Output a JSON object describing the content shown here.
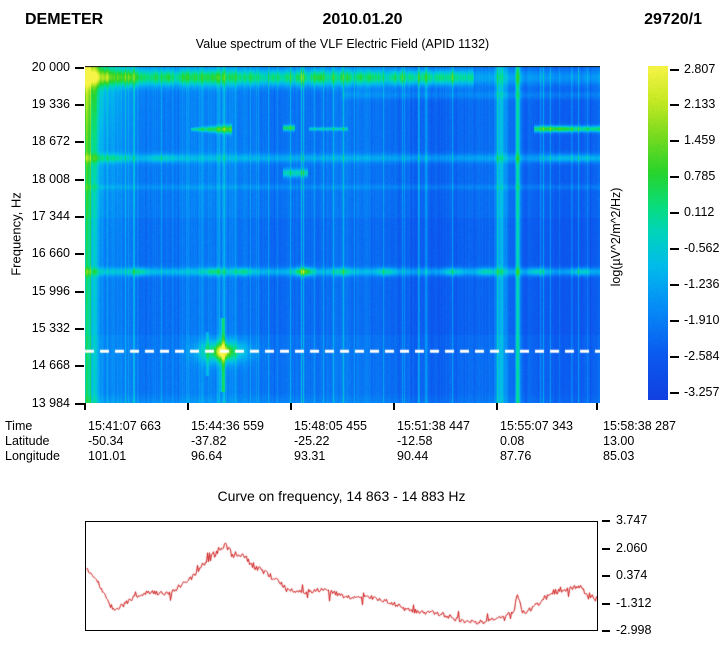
{
  "header": {
    "mission": "DEMETER",
    "date": "2010.01.20",
    "orbit": "29720/1"
  },
  "spectrogram": {
    "title": "Value spectrum of the VLF Electric Field (APID 1132)",
    "y_axis": {
      "label": "Frequency, Hz",
      "ticks": [
        "20 000",
        "19 336",
        "18 672",
        "18 008",
        "17 344",
        "16 660",
        "15 996",
        "15 332",
        "14 668",
        "13 984"
      ]
    },
    "colorbar": {
      "label": "log(µV^2/m^2/Hz)",
      "ticks": [
        "2.807",
        "2.133",
        "1.459",
        "0.785",
        "0.112",
        "-0.562",
        "-1.236",
        "-1.910",
        "-2.584",
        "-3.257"
      ]
    },
    "dashed_line": {
      "color": "#ffffff",
      "freq_fraction": 0.849
    }
  },
  "ephemeris": {
    "row_labels": [
      "Time",
      "Latitude",
      "Longitude"
    ],
    "field_keys": [
      "time",
      "lat",
      "lon"
    ],
    "columns": [
      {
        "time": "15:41:07 663",
        "lat": "-50.34",
        "lon": "101.01"
      },
      {
        "time": "15:44:36 559",
        "lat": "-37.82",
        "lon": "96.64"
      },
      {
        "time": "15:48:05 455",
        "lat": "-25.22",
        "lon": "93.31"
      },
      {
        "time": "15:51:38 447",
        "lat": "-12.58",
        "lon": "90.44"
      },
      {
        "time": "15:55:07 343",
        "lat": "0.08",
        "lon": "87.76"
      },
      {
        "time": "15:58:38 287",
        "lat": "13.00",
        "lon": "85.03"
      }
    ]
  },
  "curve": {
    "title": "Curve on frequency, 14 863 - 14 883 Hz",
    "y_ticks": [
      "3.747",
      "2.060",
      "0.374",
      "-1.312",
      "-2.998"
    ],
    "color": "#cc1111"
  },
  "palette": [
    [
      0,
      "#1240e2"
    ],
    [
      0.14,
      "#0b5cf0"
    ],
    [
      0.28,
      "#068ef8"
    ],
    [
      0.4,
      "#02bcec"
    ],
    [
      0.5,
      "#00d4bc"
    ],
    [
      0.58,
      "#0ade7e"
    ],
    [
      0.68,
      "#27d42c"
    ],
    [
      0.8,
      "#7fdc1f"
    ],
    [
      0.9,
      "#c8ea24"
    ],
    [
      1,
      "#f6f446"
    ]
  ],
  "chart_data": [
    {
      "type": "heatmap",
      "title": "Value spectrum of the VLF Electric Field (APID 1132)",
      "ylabel": "Frequency, Hz",
      "ylim": [
        13984,
        20000
      ],
      "y_ticks": [
        20000,
        19336,
        18672,
        18008,
        17344,
        16660,
        15996,
        15332,
        14668,
        13984
      ],
      "x_ticks_time": [
        "15:41:07 663",
        "15:44:36 559",
        "15:48:05 455",
        "15:51:38 447",
        "15:55:07 343",
        "15:58:38 287"
      ],
      "x_ticks_latitude": [
        -50.34,
        -37.82,
        -25.22,
        -12.58,
        0.08,
        13.0
      ],
      "x_ticks_longitude": [
        101.01,
        96.64,
        93.31,
        90.44,
        87.76,
        85.03
      ],
      "colorbar_label": "log(µV^2/m^2/Hz)",
      "colorbar_ticks": [
        2.807,
        2.133,
        1.459,
        0.785,
        0.112,
        -0.562,
        -1.236,
        -1.91,
        -2.584,
        -3.257
      ],
      "value_range": [
        -3.257,
        2.807
      ],
      "dashed_line_hz": 14873,
      "annotations": [
        "bright green emission band along the top near 20 000 Hz, fading past 15:54",
        "narrow green emission segments near 18 870 Hz",
        "faint cyan band near 18 360 Hz",
        "broad cyan band near 16 320 Hz with brighter patches",
        "green/yellow burst around 14 870 Hz near 15:44-15:45",
        "two bright vertical stripes near 15:55",
        "white dashed marker line at ~14 873 Hz"
      ],
      "background": {
        "base": 0.205,
        "left_boost": 0.12,
        "left_decay": 0.12,
        "right_darken": 0.02,
        "row_darken": 0.025
      },
      "features": [
        {
          "type": "topband",
          "center_fy": 0.033,
          "sigma": 0.024,
          "amp": 0.34,
          "x_fade": 0.755,
          "amp_right": 0.15
        },
        {
          "type": "topleft",
          "amp": 0.45,
          "dx": 0.05,
          "dy": 0.22
        },
        {
          "type": "hband",
          "fy": 0.187,
          "sigma": 0.0085,
          "amp": 0.5,
          "x0": 0.205,
          "x1": 0.285,
          "wedge": true
        },
        {
          "type": "hband",
          "fy": 0.183,
          "sigma": 0.008,
          "amp": 0.42,
          "x0": 0.385,
          "x1": 0.408
        },
        {
          "type": "hband",
          "fy": 0.186,
          "sigma": 0.005,
          "amp": 0.28,
          "x0": 0.435,
          "x1": 0.51
        },
        {
          "type": "hband",
          "fy": 0.186,
          "sigma": 0.009,
          "amp": 0.42,
          "x0": 0.873,
          "x1": 1,
          "blobs": [
            0.9,
            0.93
          ],
          "blob_amp": 0.12,
          "blob_sigma": 0.02
        },
        {
          "type": "hband",
          "fy": 0.273,
          "sigma": 0.013,
          "amp": 0.15,
          "x0": 0,
          "x1": 1,
          "blobs": [
            0.05,
            0.15,
            0.92,
            0.97
          ],
          "blob_amp": 0.1,
          "blob_sigma": 0.03
        },
        {
          "type": "hband",
          "fy": 0.317,
          "sigma": 0.012,
          "amp": 0.3,
          "x0": 0.385,
          "x1": 0.432
        },
        {
          "type": "hband",
          "fy": 0.359,
          "sigma": 0.008,
          "amp": 0.07,
          "x0": 0,
          "x1": 1
        },
        {
          "type": "hband",
          "fy": 0.085,
          "sigma": 0.012,
          "amp": 0.08,
          "x0": 0.5,
          "x1": 1
        },
        {
          "type": "hband",
          "fy": 0.611,
          "sigma": 0.012,
          "amp": 0.2,
          "x0": 0,
          "x1": 1,
          "blobs": [
            0.105,
            0.25,
            0.305,
            0.425,
            0.5,
            0.585,
            0.715,
            0.78,
            0.88,
            0.965
          ],
          "blob_amp": 0.16,
          "blob_sigma": 0.018
        },
        {
          "type": "blob",
          "fx": 0.425,
          "fy": 0.611,
          "sx": 0.016,
          "sy": 0.014,
          "amp": 0.22
        },
        {
          "type": "blob",
          "fx": 0.267,
          "fy": 0.849,
          "sx": 0.045,
          "sy": 0.032,
          "amp": 0.4
        },
        {
          "type": "blob",
          "fx": 0.267,
          "fy": 0.849,
          "sx": 0.013,
          "sy": 0.018,
          "amp": 0.38
        },
        {
          "type": "vspike",
          "fx": 0.267,
          "sigma": 0.004,
          "y0": 0.75,
          "y1": 0.97,
          "amp": 0.3
        },
        {
          "type": "vspike",
          "fx": 0.237,
          "sigma": 0.003,
          "y0": 0.79,
          "y1": 0.92,
          "amp": 0.18
        },
        {
          "type": "vstripe",
          "fx": 0.004,
          "sigma": 0.006,
          "amp": 0.25
        },
        {
          "type": "vstripe",
          "fx": 0.018,
          "sigma": 0.007,
          "amp": 0.15
        },
        {
          "type": "vstripe",
          "fx": 0.807,
          "sigma": 0.01,
          "amp": 0.22
        },
        {
          "type": "vstripe",
          "fx": 0.841,
          "sigma": 0.0045,
          "amp": 0.38
        },
        {
          "type": "bottomedge",
          "amp": 0.07
        }
      ]
    },
    {
      "type": "line",
      "title": "Curve on frequency, 14 863 - 14 883 Hz",
      "ylabel": "log(µV^2/m^2/Hz)",
      "ylim": [
        -2.998,
        3.747
      ],
      "y_ticks": [
        3.747,
        2.06,
        0.374,
        -1.312,
        -2.998
      ],
      "x_span_time": [
        "15:41:07 663",
        "15:58:38 287"
      ],
      "line_color": "#cc1111",
      "envelope_points": [
        [
          0,
          0.85
        ],
        [
          0.02,
          0.1
        ],
        [
          0.04,
          -1.0
        ],
        [
          0.055,
          -1.65
        ],
        [
          0.07,
          -1.3
        ],
        [
          0.09,
          -0.95
        ],
        [
          0.12,
          -0.8
        ],
        [
          0.15,
          -0.75
        ],
        [
          0.17,
          -0.55
        ],
        [
          0.19,
          -0.1
        ],
        [
          0.21,
          0.3
        ],
        [
          0.23,
          1.0
        ],
        [
          0.25,
          1.55
        ],
        [
          0.27,
          2.3
        ],
        [
          0.285,
          1.9
        ],
        [
          0.3,
          1.75
        ],
        [
          0.315,
          1.5
        ],
        [
          0.33,
          0.95
        ],
        [
          0.35,
          0.55
        ],
        [
          0.38,
          0
        ],
        [
          0.4,
          -0.3
        ],
        [
          0.43,
          -0.55
        ],
        [
          0.46,
          -0.65
        ],
        [
          0.5,
          -0.85
        ],
        [
          0.53,
          -0.95
        ],
        [
          0.56,
          -1.1
        ],
        [
          0.6,
          -1.4
        ],
        [
          0.63,
          -1.6
        ],
        [
          0.66,
          -1.8
        ],
        [
          0.69,
          -2.0
        ],
        [
          0.72,
          -2.2
        ],
        [
          0.75,
          -2.3
        ],
        [
          0.78,
          -2.5
        ],
        [
          0.8,
          -2.4
        ],
        [
          0.82,
          -2.3
        ],
        [
          0.838,
          -1.9
        ],
        [
          0.845,
          -0.8
        ],
        [
          0.855,
          -1.9
        ],
        [
          0.87,
          -1.7
        ],
        [
          0.89,
          -1.3
        ],
        [
          0.91,
          -0.85
        ],
        [
          0.93,
          -0.65
        ],
        [
          0.95,
          -0.45
        ],
        [
          0.965,
          -0.15
        ],
        [
          0.98,
          -0.55
        ],
        [
          1,
          -0.95
        ]
      ]
    }
  ]
}
